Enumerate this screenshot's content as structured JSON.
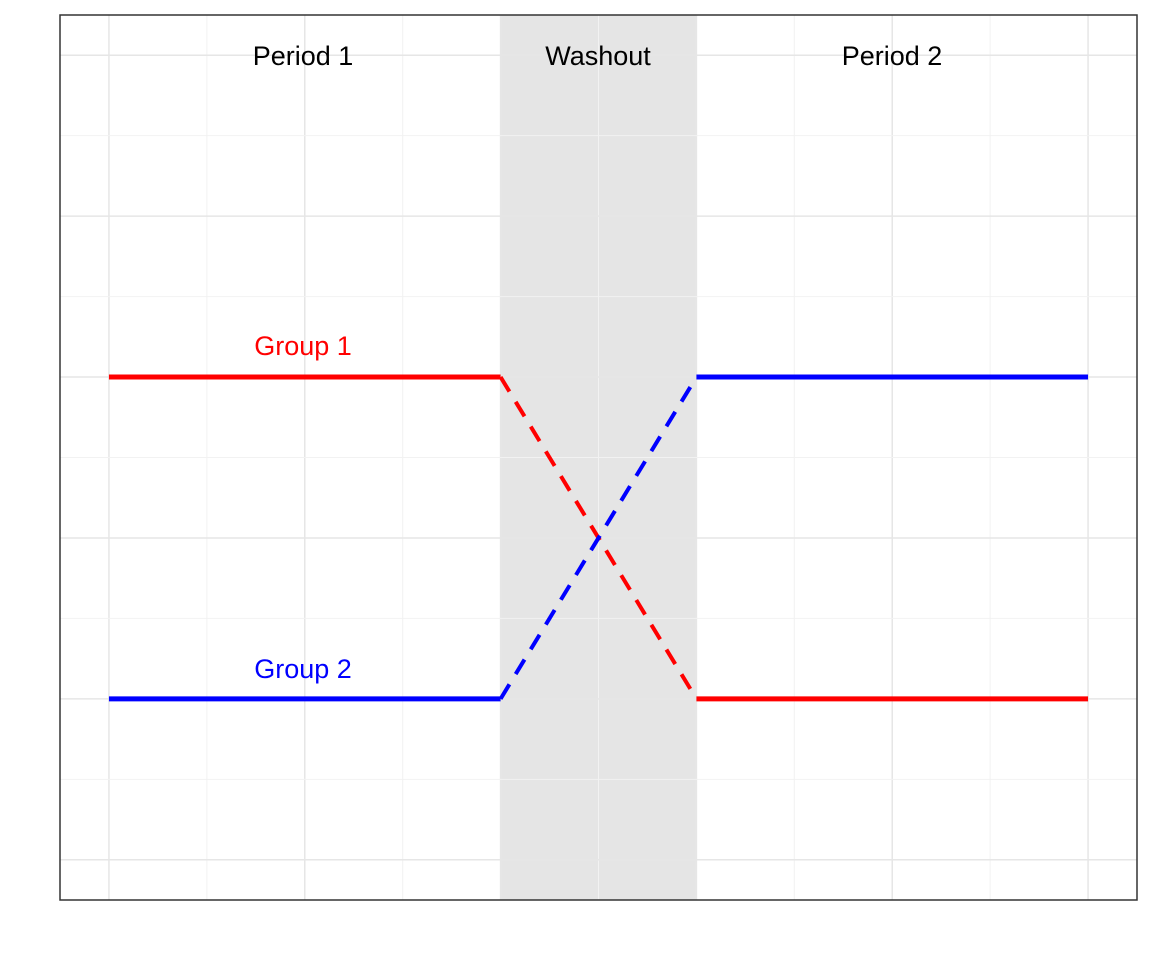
{
  "regions": [
    {
      "label": "Period 1",
      "x": [
        0,
        4
      ],
      "shaded": false
    },
    {
      "label": "Washout",
      "x": [
        4,
        6
      ],
      "shaded": true
    },
    {
      "label": "Period 2",
      "x": [
        6,
        10
      ],
      "shaded": false
    }
  ],
  "groups": [
    {
      "label": "Group 1",
      "color": "#ff0000",
      "period1_level": 4,
      "period2_level": 0,
      "label_x": 2
    },
    {
      "label": "Group 2",
      "color": "#0000ff",
      "period1_level": 0,
      "period2_level": 4,
      "label_x": 2
    }
  ],
  "colors": {
    "washout_fill": "#e5e5e5",
    "grid_major": "#e6e6e6",
    "grid_minor": "#f2f2f2",
    "border": "#333333",
    "region_text": "#000000"
  },
  "grid": true,
  "x_range": [
    -0.5,
    10.5
  ],
  "y_range": [
    -2.5,
    8.5
  ]
}
